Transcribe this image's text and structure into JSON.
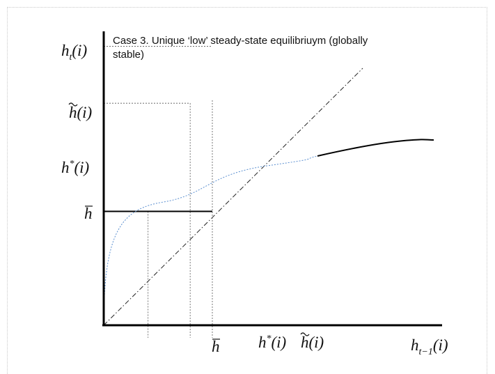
{
  "caption": {
    "line1": "Case 3. Unique ‘low’ steady-state equilibriuym (globally",
    "line2": "stable)"
  },
  "y_axis": {
    "label_base": "h",
    "label_sub": "t",
    "label_arg": "(i)",
    "ticks": [
      {
        "id": "h-tilde",
        "base": "h",
        "accent": "tilde",
        "sup": "",
        "arg": "(i)",
        "value": 2.45
      },
      {
        "id": "h-star",
        "base": "h",
        "accent": "",
        "sup": "*",
        "arg": "(i)",
        "value": 1.95
      },
      {
        "id": "h-bar",
        "base": "h",
        "accent": "bar",
        "sup": "",
        "arg": "",
        "value": 1.0
      }
    ]
  },
  "x_axis": {
    "label_base": "h",
    "label_sub": "t−1",
    "label_arg": "(i)",
    "ticks": [
      {
        "id": "h-bar",
        "base": "h",
        "accent": "bar",
        "sup": "",
        "arg": "",
        "value": 1.0
      },
      {
        "id": "h-star",
        "base": "h",
        "accent": "",
        "sup": "*",
        "arg": "(i)",
        "value": 1.95
      },
      {
        "id": "h-tilde",
        "base": "h",
        "accent": "tilde",
        "sup": "",
        "arg": "(i)",
        "value": 2.45
      }
    ]
  },
  "curves": {
    "lower_segment": {
      "value": 1.0,
      "x_from": 0,
      "x_to": 2.45
    },
    "upper_branch": [
      [
        2.45,
        1.67
      ],
      [
        2.8,
        1.82
      ],
      [
        3.15,
        1.93
      ],
      [
        3.25,
        1.95
      ]
    ],
    "concave_dotted": [
      [
        0,
        0
      ],
      [
        0.1,
        0.67
      ],
      [
        0.3,
        1.0
      ],
      [
        0.6,
        1.22
      ],
      [
        1.0,
        1.4
      ],
      [
        1.5,
        1.55
      ],
      [
        1.95,
        1.95
      ],
      [
        2.45,
        1.67
      ]
    ],
    "colors": {
      "axes": "#000000",
      "dotted_curve": "#5b8fd0",
      "guides": "#555555"
    }
  }
}
